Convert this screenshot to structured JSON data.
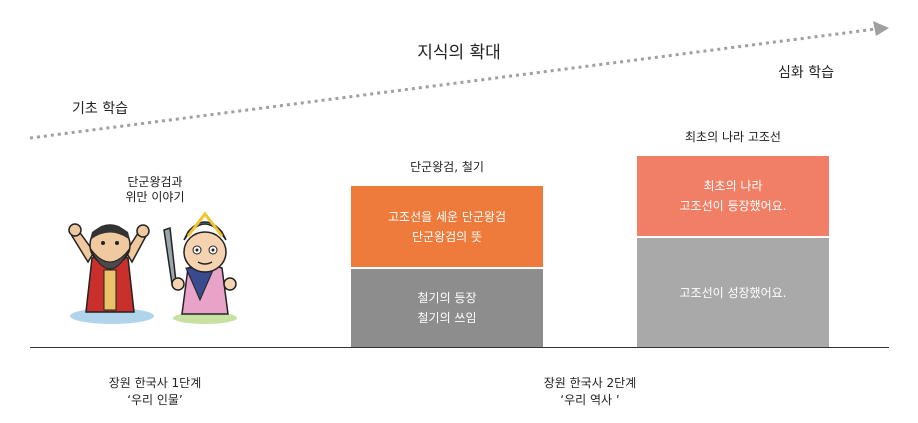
{
  "title": "지식의 확대",
  "left_label": "기초 학습",
  "right_label": "심화 학습",
  "group1": {
    "caption_line1": "단군왕검과",
    "caption_line2": "위만 이야기",
    "bottom_line1": "장원 한국사 1단계",
    "bottom_line2": "‘우리 인물’"
  },
  "group2": {
    "caption": "단군왕검, 철기",
    "top_block_line1": "고조선을 세운 단군왕검",
    "top_block_line2": "단군왕검의 뜻",
    "bottom_block_line1": "철기의 등장",
    "bottom_block_line2": "철기의 쓰임",
    "bottom_line1": "장원 한국사 2단계",
    "bottom_line2": "‘우리 역사 ’"
  },
  "group3": {
    "caption": "최초의 나라 고조선",
    "top_block_line1": "최초의 나라",
    "top_block_line2": "고조선이 등장했어요.",
    "bottom_block": "고조선이 성장했어요."
  },
  "colors": {
    "orange": "#ee7b3b",
    "salmon": "#f07f66",
    "gray_dark": "#8d8d8d",
    "gray_light": "#a9a9a9",
    "arrow": "#a0a0a0"
  }
}
